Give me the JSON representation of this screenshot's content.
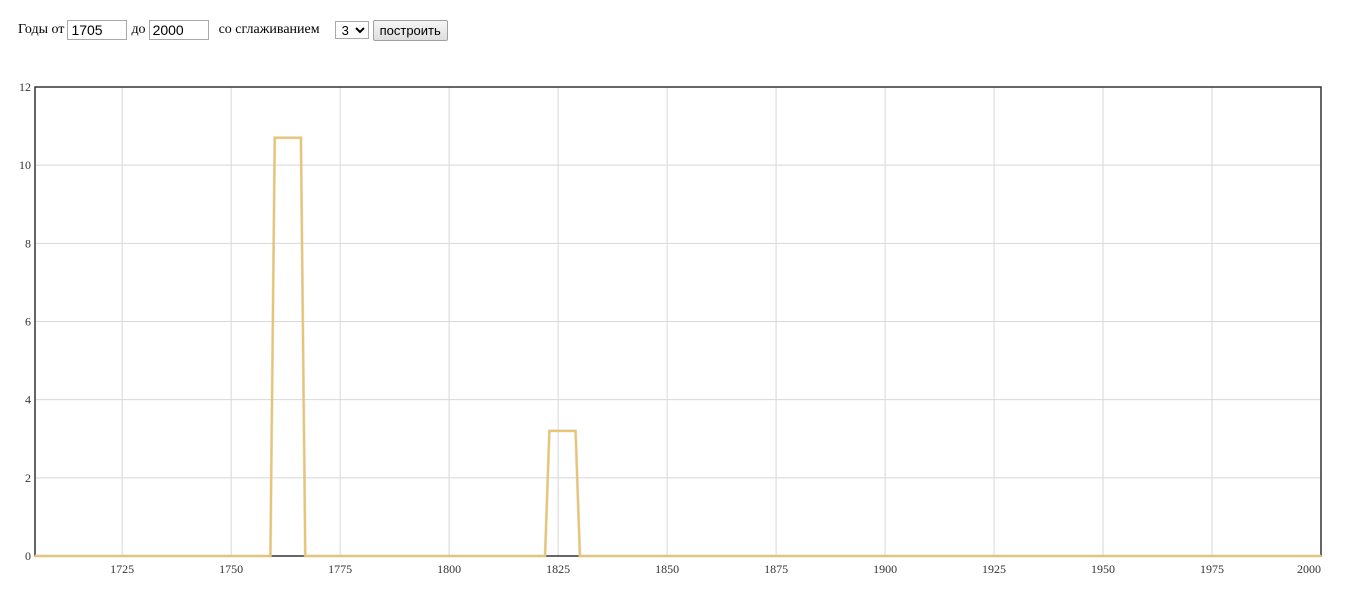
{
  "controls": {
    "years_from_label": "Годы от",
    "year_from_value": "1705",
    "years_to_label": "до",
    "year_to_value": "2000",
    "smoothing_label": "со сглаживанием",
    "smoothing_value": "3",
    "build_button_label": "построить"
  },
  "chart_data": {
    "type": "line",
    "title": "",
    "xlabel": "",
    "ylabel": "",
    "xlim": [
      1705,
      2000
    ],
    "ylim": [
      0,
      12
    ],
    "x_ticks": [
      1725,
      1750,
      1775,
      1800,
      1825,
      1850,
      1875,
      1900,
      1925,
      1950,
      1975,
      2000
    ],
    "y_ticks": [
      0,
      2,
      4,
      6,
      8,
      10,
      12
    ],
    "grid": true,
    "series": [
      {
        "color": "#e9c46a",
        "points": [
          [
            1705,
            0
          ],
          [
            1759,
            0
          ],
          [
            1760,
            10.7
          ],
          [
            1766,
            10.7
          ],
          [
            1767,
            0
          ],
          [
            1822,
            0
          ],
          [
            1823,
            3.2
          ],
          [
            1829,
            3.2
          ],
          [
            1830,
            0
          ],
          [
            2000,
            0
          ]
        ]
      }
    ]
  }
}
